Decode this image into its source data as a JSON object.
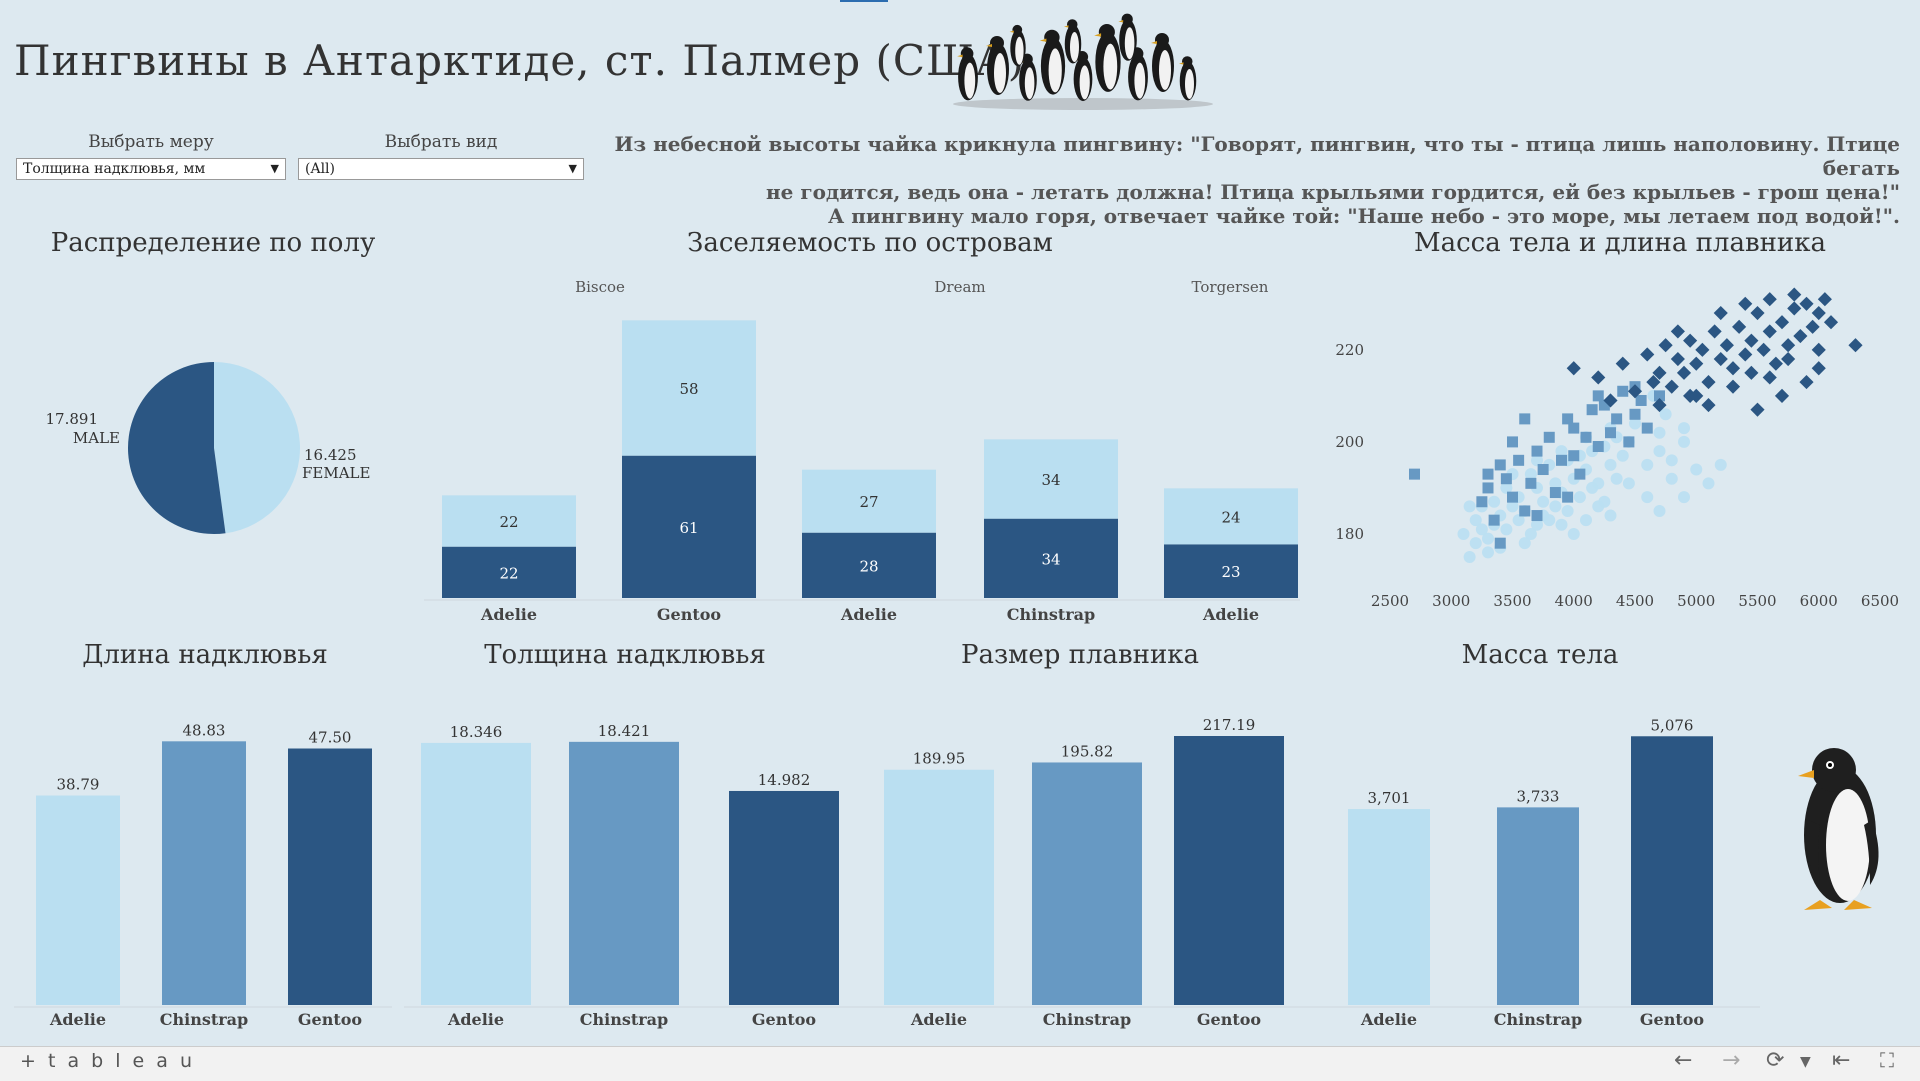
{
  "title": "Пингвины в Антарктиде, ст. Палмер (США)",
  "filters": {
    "measure": {
      "label": "Выбрать меру",
      "value": "Толщина надклювья, мм"
    },
    "species": {
      "label": "Выбрать вид",
      "value": "(All)"
    }
  },
  "quote": [
    "Из небесной высоты чайка крикнула пингвину: \"Говорят, пингвин, что ты - птица лишь наполовину. Птице бегать",
    "не годится, ведь она - летать должна! Птица крыльями гордится, ей без крыльев - грош цена!\"",
    "А пингвину мало горя, отвечает чайке той: \"Наше небо - это море, мы летаем под водой!\"."
  ],
  "colors": {
    "dark": "#2b5683",
    "mid": "#6799c3",
    "light": "#badff1"
  },
  "footer": {
    "logo": "+ t a b l e a u",
    "icons": [
      "arrow-left-icon",
      "arrow-right-icon",
      "refresh-icon",
      "chevron-down-icon",
      "rewind-icon",
      "fullscreen-icon"
    ]
  },
  "chart_data": [
    {
      "id": "sex",
      "type": "pie",
      "title": "Распределение по полу",
      "slices": [
        {
          "label": "MALE",
          "value_label": "17.891",
          "value": 17.891,
          "color": "#2b5683"
        },
        {
          "label": "FEMALE",
          "value_label": "16.425",
          "value": 16.425,
          "color": "#badff1"
        }
      ]
    },
    {
      "id": "islands",
      "type": "bar",
      "stacked": true,
      "title": "Заселяемость по островам",
      "groups": [
        {
          "name": "Biscoe",
          "bars": [
            {
              "species": "Adelie",
              "dark": 22,
              "light": 22
            },
            {
              "species": "Gentoo",
              "dark": 61,
              "light": 58
            }
          ]
        },
        {
          "name": "Dream",
          "bars": [
            {
              "species": "Adelie",
              "dark": 28,
              "light": 27
            },
            {
              "species": "Chinstrap",
              "dark": 34,
              "light": 34
            }
          ]
        },
        {
          "name": "Torgersen",
          "bars": [
            {
              "species": "Adelie",
              "dark": 23,
              "light": 24
            }
          ]
        }
      ]
    },
    {
      "id": "scatter",
      "type": "scatter",
      "title": "Масса тела и длина плавника",
      "x_ticks": [
        "2500",
        "3000",
        "3500",
        "4000",
        "4500",
        "5000",
        "5500",
        "6000",
        "6500"
      ],
      "y_ticks": [
        "180",
        "200",
        "220"
      ],
      "xlim": [
        2500,
        6500
      ],
      "ylim": [
        170,
        233
      ],
      "series": [
        {
          "color": "#badff1",
          "marker": "circle",
          "points": [
            [
              3150,
              186
            ],
            [
              3200,
              183
            ],
            [
              3250,
              181
            ],
            [
              3300,
              179
            ],
            [
              3350,
              187
            ],
            [
              3400,
              184
            ],
            [
              3450,
              190
            ],
            [
              3500,
              186
            ],
            [
              3550,
              188
            ],
            [
              3600,
              185
            ],
            [
              3650,
              193
            ],
            [
              3700,
              190
            ],
            [
              3750,
              187
            ],
            [
              3800,
              195
            ],
            [
              3850,
              191
            ],
            [
              3900,
              189
            ],
            [
              3950,
              196
            ],
            [
              4000,
              192
            ],
            [
              4050,
              197
            ],
            [
              4100,
              194
            ],
            [
              4150,
              198
            ],
            [
              4200,
              191
            ],
            [
              4250,
              199
            ],
            [
              4300,
              195
            ],
            [
              4350,
              201
            ],
            [
              4400,
              197
            ],
            [
              4450,
              200
            ],
            [
              3250,
              186
            ],
            [
              3350,
              182
            ],
            [
              3450,
              181
            ],
            [
              3550,
              183
            ],
            [
              3650,
              180
            ],
            [
              3750,
              184
            ],
            [
              3850,
              186
            ],
            [
              3950,
              185
            ],
            [
              4050,
              188
            ],
            [
              4150,
              190
            ],
            [
              4250,
              187
            ],
            [
              4350,
              192
            ],
            [
              4450,
              191
            ],
            [
              4600,
              188
            ],
            [
              4700,
              185
            ],
            [
              4800,
              192
            ],
            [
              4900,
              188
            ],
            [
              5000,
              194
            ],
            [
              5100,
              191
            ],
            [
              5200,
              195
            ],
            [
              3100,
              180
            ],
            [
              3150,
              175
            ],
            [
              3200,
              178
            ],
            [
              3300,
              176
            ],
            [
              3400,
              177
            ],
            [
              3600,
              178
            ],
            [
              3700,
              182
            ],
            [
              3800,
              183
            ],
            [
              3900,
              182
            ],
            [
              4000,
              180
            ],
            [
              4100,
              183
            ],
            [
              4200,
              186
            ],
            [
              4300,
              184
            ],
            [
              4600,
              195
            ],
            [
              4700,
              198
            ],
            [
              4800,
              196
            ],
            [
              4900,
              200
            ],
            [
              3500,
              193
            ],
            [
              3700,
              196
            ],
            [
              3900,
              198
            ],
            [
              4100,
              201
            ],
            [
              4300,
              203
            ],
            [
              4500,
              204
            ],
            [
              4700,
              202
            ],
            [
              4900,
              203
            ],
            [
              4650,
              210
            ],
            [
              4750,
              206
            ]
          ]
        },
        {
          "color": "#6799c3",
          "marker": "square",
          "points": [
            [
              2700,
              193
            ],
            [
              3250,
              187
            ],
            [
              3300,
              190
            ],
            [
              3350,
              183
            ],
            [
              3400,
              195
            ],
            [
              3450,
              192
            ],
            [
              3500,
              188
            ],
            [
              3550,
              196
            ],
            [
              3600,
              185
            ],
            [
              3650,
              191
            ],
            [
              3700,
              198
            ],
            [
              3750,
              194
            ],
            [
              3800,
              201
            ],
            [
              3850,
              189
            ],
            [
              3900,
              196
            ],
            [
              3950,
              205
            ],
            [
              4000,
              197
            ],
            [
              4050,
              193
            ],
            [
              4100,
              201
            ],
            [
              4150,
              207
            ],
            [
              4200,
              199
            ],
            [
              4250,
              208
            ],
            [
              4300,
              202
            ],
            [
              4350,
              205
            ],
            [
              4400,
              211
            ],
            [
              4450,
              200
            ],
            [
              4500,
              206
            ],
            [
              4550,
              209
            ],
            [
              4600,
              203
            ],
            [
              4700,
              210
            ],
            [
              3500,
              200
            ],
            [
              3600,
              205
            ],
            [
              4000,
              203
            ],
            [
              4200,
              210
            ],
            [
              4500,
              212
            ],
            [
              3400,
              178
            ],
            [
              3700,
              184
            ],
            [
              3300,
              193
            ],
            [
              3950,
              188
            ]
          ]
        },
        {
          "color": "#2b5683",
          "marker": "diamond",
          "points": [
            [
              4000,
              216
            ],
            [
              4200,
              214
            ],
            [
              4300,
              209
            ],
            [
              4400,
              217
            ],
            [
              4500,
              211
            ],
            [
              4600,
              219
            ],
            [
              4650,
              213
            ],
            [
              4700,
              215
            ],
            [
              4750,
              221
            ],
            [
              4800,
              212
            ],
            [
              4850,
              218
            ],
            [
              4900,
              215
            ],
            [
              4950,
              222
            ],
            [
              5000,
              217
            ],
            [
              5050,
              220
            ],
            [
              5100,
              213
            ],
            [
              5150,
              224
            ],
            [
              5200,
              218
            ],
            [
              5250,
              221
            ],
            [
              5300,
              216
            ],
            [
              5350,
              225
            ],
            [
              5400,
              219
            ],
            [
              5450,
              222
            ],
            [
              5500,
              228
            ],
            [
              5550,
              220
            ],
            [
              5600,
              224
            ],
            [
              5650,
              217
            ],
            [
              5700,
              226
            ],
            [
              5750,
              221
            ],
            [
              5800,
              229
            ],
            [
              5850,
              223
            ],
            [
              5900,
              230
            ],
            [
              5950,
              225
            ],
            [
              6000,
              228
            ],
            [
              6050,
              231
            ],
            [
              6100,
              226
            ],
            [
              6300,
              221
            ],
            [
              4850,
              224
            ],
            [
              4950,
              210
            ],
            [
              5100,
              208
            ],
            [
              5300,
              212
            ],
            [
              5450,
              215
            ],
            [
              5600,
              214
            ],
            [
              5750,
              218
            ],
            [
              5900,
              213
            ],
            [
              6000,
              220
            ],
            [
              5200,
              228
            ],
            [
              5400,
              230
            ],
            [
              5600,
              231
            ],
            [
              5800,
              232
            ],
            [
              4700,
              208
            ],
            [
              5000,
              210
            ],
            [
              5500,
              207
            ],
            [
              5700,
              210
            ],
            [
              6000,
              216
            ]
          ]
        }
      ]
    },
    {
      "id": "bill_length",
      "type": "bar",
      "title": "Длина надклювья",
      "categories": [
        "Adelie",
        "Chinstrap",
        "Gentoo"
      ],
      "values": [
        38.79,
        48.83,
        47.5
      ],
      "labels": [
        "38.79",
        "48.83",
        "47.50"
      ],
      "ylim": [
        0,
        50
      ]
    },
    {
      "id": "bill_depth",
      "type": "bar",
      "title": "Толщина надклювья",
      "categories": [
        "Adelie",
        "Chinstrap",
        "Gentoo"
      ],
      "values": [
        18.346,
        18.421,
        14.982
      ],
      "labels": [
        "18.346",
        "18.421",
        "14.982"
      ],
      "ylim": [
        0,
        18.9
      ]
    },
    {
      "id": "flipper",
      "type": "bar",
      "title": "Размер плавника",
      "categories": [
        "Adelie",
        "Chinstrap",
        "Gentoo"
      ],
      "values": [
        189.95,
        195.82,
        217.19
      ],
      "labels": [
        "189.95",
        "195.82",
        "217.19"
      ],
      "ylim": [
        0,
        218
      ]
    },
    {
      "id": "mass",
      "type": "bar",
      "title": "Масса тела",
      "categories": [
        "Adelie",
        "Chinstrap",
        "Gentoo"
      ],
      "values": [
        3701,
        3733,
        5076
      ],
      "labels": [
        "3,701",
        "3,733",
        "5,076"
      ],
      "ylim": [
        0,
        5100
      ]
    }
  ]
}
